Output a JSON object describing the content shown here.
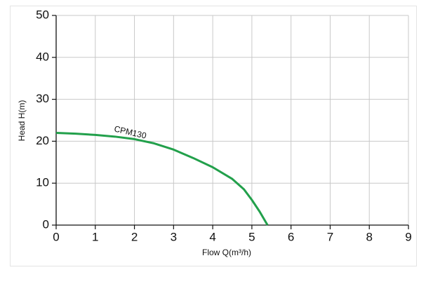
{
  "chart_data": {
    "type": "line",
    "x_label": "Flow Q(m³/h)",
    "y_label": "Head H(m)",
    "series": [
      {
        "name": "CPM130",
        "color": "#22a04b",
        "x": [
          0,
          0.5,
          1,
          1.5,
          2,
          2.5,
          3,
          3.5,
          4,
          4.5,
          4.8,
          5,
          5.2,
          5.4
        ],
        "values": [
          22,
          21.8,
          21.5,
          21.1,
          20.5,
          19.5,
          18,
          16,
          13.8,
          11,
          8.5,
          6,
          3.2,
          0
        ]
      }
    ],
    "xlim": [
      0,
      9
    ],
    "xticks": [
      0,
      1,
      2,
      3,
      4,
      5,
      6,
      7,
      8,
      9
    ],
    "ylim": [
      0,
      50
    ],
    "yticks": [
      0,
      10,
      20,
      30,
      40,
      50
    ],
    "grid": true
  }
}
